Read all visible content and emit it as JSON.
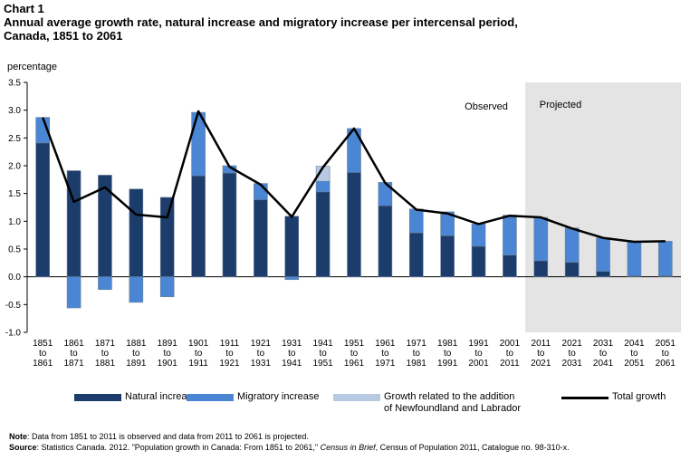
{
  "title": {
    "line1": "Chart 1",
    "line2": "Annual average growth rate, natural increase and migratory increase per intercensal period,",
    "line3": "Canada,  1851 to 2061"
  },
  "chart_data": {
    "type": "bar",
    "stacked": true,
    "ylabel": "percentage",
    "ylim": [
      -1.0,
      3.5
    ],
    "yticks": [
      "3.5",
      "3.0",
      "2.5",
      "2.0",
      "1.5",
      "1.0",
      "0.5",
      "0.0",
      "-0.5",
      "-1.0"
    ],
    "categories": [
      [
        "1851",
        "to",
        "1861"
      ],
      [
        "1861",
        "to",
        "1871"
      ],
      [
        "1871",
        "to",
        "1881"
      ],
      [
        "1881",
        "to",
        "1891"
      ],
      [
        "1891",
        "to",
        "1901"
      ],
      [
        "1901",
        "to",
        "1911"
      ],
      [
        "1911",
        "to",
        "1921"
      ],
      [
        "1921",
        "to",
        "1931"
      ],
      [
        "1931",
        "to",
        "1941"
      ],
      [
        "1941",
        "to",
        "1951"
      ],
      [
        "1951",
        "to",
        "1961"
      ],
      [
        "1961",
        "to",
        "1971"
      ],
      [
        "1971",
        "to",
        "1981"
      ],
      [
        "1981",
        "to",
        "1991"
      ],
      [
        "1991",
        "to",
        "2001"
      ],
      [
        "2001",
        "to",
        "2011"
      ],
      [
        "2011",
        "to",
        "2021"
      ],
      [
        "2021",
        "to",
        "2031"
      ],
      [
        "2031",
        "to",
        "2041"
      ],
      [
        "2041",
        "to",
        "2051"
      ],
      [
        "2051",
        "to",
        "2061"
      ]
    ],
    "series": [
      {
        "name": "Natural increase",
        "color": "#1c3c6c",
        "values": [
          2.41,
          1.91,
          1.83,
          1.58,
          1.43,
          1.82,
          1.87,
          1.39,
          1.09,
          1.53,
          1.88,
          1.28,
          0.79,
          0.74,
          0.55,
          0.39,
          0.29,
          0.26,
          0.1,
          0.02,
          0.02
        ]
      },
      {
        "name": "Migratory increase",
        "color": "#4a86d4",
        "values": [
          0.46,
          -0.56,
          -0.23,
          -0.46,
          -0.36,
          1.14,
          0.13,
          0.29,
          -0.05,
          0.19,
          0.79,
          0.42,
          0.43,
          0.43,
          0.4,
          0.72,
          0.78,
          0.62,
          0.6,
          0.62,
          0.62
        ]
      },
      {
        "name": "Growth related to the addition of Newfoundland and Labrador",
        "color": "#b8c9e4",
        "values": [
          0,
          0,
          0,
          0,
          0,
          0,
          0,
          0,
          0,
          0.27,
          0,
          0,
          0,
          0,
          0,
          0,
          0,
          0,
          0,
          0,
          0
        ]
      }
    ],
    "line": {
      "name": "Total growth",
      "color": "#000000",
      "values": [
        2.87,
        1.35,
        1.61,
        1.12,
        1.07,
        2.98,
        1.98,
        1.66,
        1.08,
        1.97,
        2.67,
        1.69,
        1.21,
        1.14,
        0.95,
        1.1,
        1.07,
        0.87,
        0.7,
        0.63,
        0.64
      ]
    },
    "annotations": {
      "observed": "Observed",
      "projected": "Projected"
    },
    "projected_from_index": 16
  },
  "legend": {
    "natural": "Natural increase",
    "migratory": "Migratory increase",
    "nfl_line1": "Growth related to the addition",
    "nfl_line2": "of Newfoundland and Labrador",
    "total": "Total growth"
  },
  "colors": {
    "natural": "#1c3c6c",
    "migratory": "#4a86d4",
    "nfl": "#b8c9e4",
    "total": "#000000",
    "projected_bg": "#e4e4e4",
    "bar_outline": "#6a7f99"
  },
  "note": {
    "note_label": "Note",
    "note_text": ": Data from 1851 to 2011 is observed and data from 2011 to 2061 is projected.",
    "source_label": "Source",
    "source_text1": ":  Statistics Canada. 2012.  \"Population growth in Canada: From 1851 to 2061,\" ",
    "source_italic": "Census in Brief",
    "source_text2": ",  Census of Population 2011, Catalogue no. 98-310-x."
  }
}
